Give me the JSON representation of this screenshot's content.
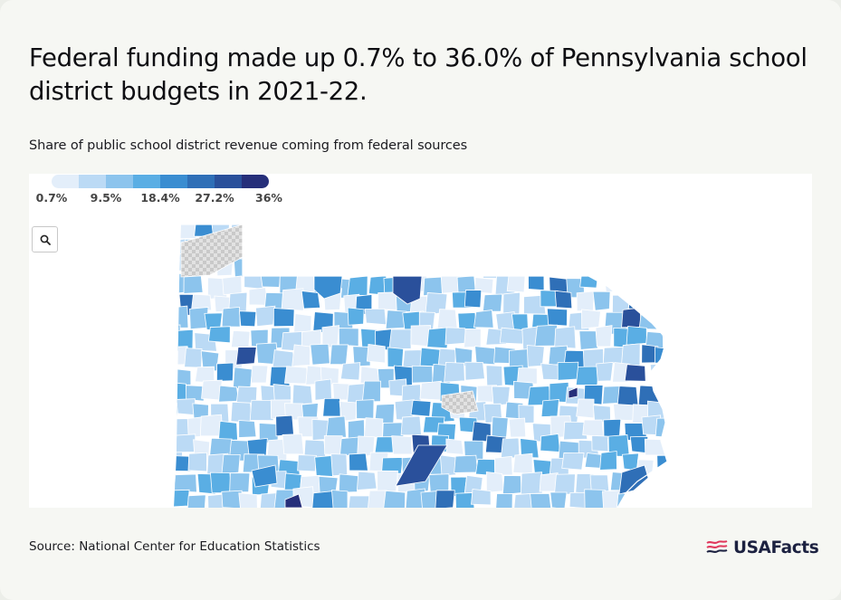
{
  "title": "Federal funding made up 0.7% to 36.0% of Pennsylvania school district budgets in 2021-22.",
  "subtitle": "Share of public school district revenue coming from federal sources",
  "source": "Source: National Center for Education Statistics",
  "brand": "USAFacts",
  "legend": {
    "colors": [
      "#e3eefa",
      "#bbdaf5",
      "#8cc4ed",
      "#5aaee4",
      "#3a8dd1",
      "#2f6fb7",
      "#2a509b",
      "#262f7a"
    ],
    "labels": [
      "0.7%",
      "9.5%",
      "18.4%",
      "27.2%",
      "36%"
    ]
  },
  "map": {
    "region": "Pennsylvania school districts",
    "no_data_color": "#cfcfcf",
    "zoom_icon": "search-icon"
  }
}
